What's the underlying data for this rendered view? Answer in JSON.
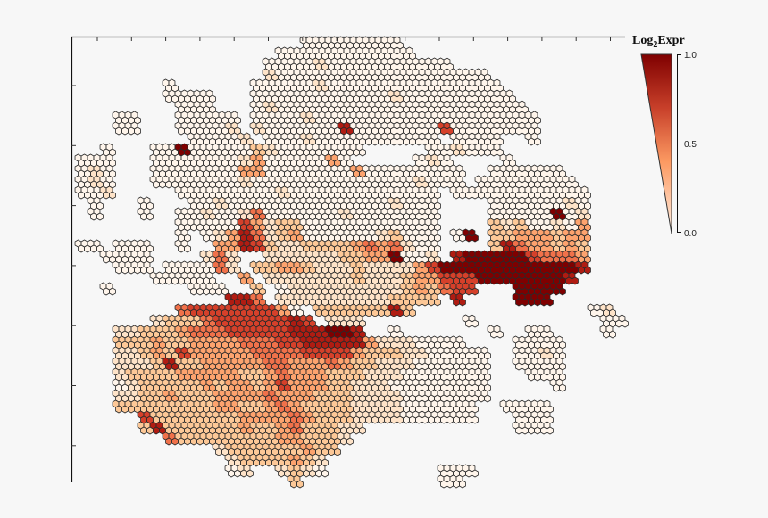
{
  "chart_data": {
    "type": "heatmap",
    "subtype": "hexbin",
    "title": "",
    "xlabel": "",
    "ylabel": "",
    "grid": false,
    "x_tick_labels": [],
    "y_tick_labels": [],
    "legend": {
      "title_main": "Log",
      "title_sub": "2",
      "title_tail": "Expr",
      "placement": "top-right",
      "range": [
        0.0,
        1.0
      ],
      "ticks": [
        "1.0",
        "0.5",
        "0.0"
      ],
      "colormap": [
        "#fff5eb",
        "#fee3c8",
        "#fdc897",
        "#fda36e",
        "#f0714a",
        "#d5402a",
        "#b01c12",
        "#7f0000"
      ]
    },
    "value_scale_note_levels": 7,
    "rows": [
      [
        [
          18,
          "00000000"
        ]
      ],
      [
        [
          16,
          "00000000000"
        ]
      ],
      [
        [
          15,
          "000010000000000"
        ]
      ],
      [
        [
          15,
          "100000000000000000"
        ]
      ],
      [
        [
          7,
          "0"
        ],
        [
          14,
          "00000100000000000000"
        ]
      ],
      [
        [
          7,
          "0000"
        ],
        [
          14,
          "000000000001000000000"
        ]
      ],
      [
        [
          8,
          "000"
        ],
        [
          14,
          "0100000000000000000000"
        ]
      ],
      [
        [
          3,
          "00"
        ],
        [
          8,
          "00000"
        ],
        [
          14,
          "00001000000000000000000"
        ]
      ],
      [
        [
          3,
          "00"
        ],
        [
          8,
          "00001"
        ],
        [
          14,
          "10000006000000050000000"
        ]
      ],
      [
        [
          9,
          "00001"
        ],
        [
          15,
          "00010000000000"
        ],
        [
          30,
          "0000"
        ],
        [
          36,
          "0"
        ]
      ],
      [
        [
          2,
          "0"
        ],
        [
          6,
          "0070000021"
        ],
        [
          16,
          "0000000"
        ],
        [
          28,
          "001000"
        ]
      ],
      [
        [
          0,
          "000"
        ],
        [
          6,
          "000000013"
        ],
        [
          15,
          "0000030"
        ],
        [
          27,
          "010"
        ],
        [
          34,
          "0"
        ]
      ],
      [
        [
          0,
          "010"
        ],
        [
          6,
          "000000033"
        ],
        [
          15,
          "00000003000"
        ],
        [
          26,
          "00000"
        ],
        [
          33,
          "000000"
        ]
      ],
      [
        [
          0,
          "010"
        ],
        [
          6,
          "000000010"
        ],
        [
          15,
          "0000000000001000"
        ],
        [
          32,
          "00000000"
        ]
      ],
      [
        [
          0,
          "001"
        ],
        [
          8,
          "0000000"
        ],
        [
          15,
          "01000000000000"
        ],
        [
          30,
          "000"
        ],
        [
          33,
          "00000000"
        ]
      ],
      [
        [
          1,
          "0"
        ],
        [
          5,
          "0"
        ],
        [
          9,
          "001000"
        ],
        [
          15,
          "00000000001000"
        ],
        [
          33,
          "00000010"
        ]
      ],
      [
        [
          1,
          "0"
        ],
        [
          5,
          "0"
        ],
        [
          8,
          "0010014"
        ],
        [
          15,
          "00000010000000"
        ],
        [
          33,
          "00000701"
        ]
      ],
      [
        [
          8,
          "00000531"
        ],
        [
          16,
          "2200000000000"
        ],
        [
          33,
          "21200103"
        ]
      ],
      [
        [
          8,
          "0"
        ],
        [
          10,
          "0136"
        ],
        [
          14,
          "4"
        ],
        [
          15,
          "12300000012000"
        ],
        [
          30,
          "07"
        ],
        [
          33,
          "22333233"
        ]
      ],
      [
        [
          0,
          "00"
        ],
        [
          3,
          "000"
        ],
        [
          8,
          "0"
        ],
        [
          11,
          "3365"
        ],
        [
          15,
          "21122223434100"
        ],
        [
          33,
          "26433232"
        ]
      ],
      [
        [
          2,
          "0000"
        ],
        [
          10,
          "141"
        ],
        [
          15,
          "111111223370"
        ],
        [
          27,
          "01"
        ],
        [
          30,
          "677777"
        ],
        [
          36,
          "54443"
        ]
      ],
      [
        [
          3,
          "000"
        ],
        [
          7,
          "0000"
        ],
        [
          11,
          "41"
        ],
        [
          14,
          "2"
        ],
        [
          15,
          "2332111211113"
        ],
        [
          28,
          "5"
        ],
        [
          29,
          "77777777777"
        ],
        [
          40,
          "6"
        ]
      ],
      [
        [
          6,
          "00000"
        ],
        [
          13,
          "3"
        ],
        [
          15,
          "11111112111233"
        ],
        [
          29,
          "555"
        ],
        [
          32,
          "77777776"
        ]
      ],
      [
        [
          2,
          "0"
        ],
        [
          9,
          "000"
        ],
        [
          14,
          "2"
        ],
        [
          16,
          "011111111123"
        ],
        [
          28,
          "2"
        ],
        [
          29,
          "455"
        ],
        [
          35,
          "7777"
        ]
      ],
      [
        [
          12,
          "66"
        ],
        [
          14,
          "4"
        ],
        [
          16,
          "1111111112222"
        ],
        [
          30,
          "6"
        ],
        [
          35,
          "777"
        ]
      ],
      [
        [
          8,
          "455555553"
        ],
        [
          17,
          "0"
        ],
        [
          19,
          "22222262"
        ],
        [
          41,
          "01"
        ]
      ],
      [
        [
          6,
          "1222455555565"
        ],
        [
          20,
          "111"
        ],
        [
          31,
          "0"
        ],
        [
          42,
          "00"
        ]
      ],
      [
        [
          3,
          "1122234445555566677"
        ],
        [
          22,
          "6"
        ],
        [
          25,
          "0"
        ],
        [
          33,
          "0"
        ],
        [
          36,
          "00"
        ],
        [
          42,
          "0"
        ]
      ],
      [
        [
          3,
          "222322333344455666663"
        ],
        [
          24,
          "111"
        ],
        [
          27,
          "0000"
        ],
        [
          35,
          "0000"
        ]
      ],
      [
        [
          3,
          "112325333334444555532221100000"
        ],
        [
          35,
          "0010"
        ]
      ],
      [
        [
          3,
          "111262233333443334322111000000"
        ],
        [
          35,
          "0000"
        ]
      ],
      [
        [
          3,
          "122223333322343332221110000000"
        ],
        [
          36,
          "000"
        ]
      ],
      [
        [
          3,
          "012222232332353332211100000000"
        ],
        [
          38,
          "0"
        ]
      ],
      [
        [
          3,
          "112232223333433322211110000000"
        ]
      ],
      [
        [
          3,
          "22222222332234322221111000000"
        ],
        [
          34,
          "0000"
        ]
      ],
      [
        [
          5,
          "522222223333432221111000000"
        ],
        [
          35,
          "000"
        ]
      ],
      [
        [
          5,
          "262222223223422211"
        ],
        [
          35,
          "000"
        ]
      ],
      [
        [
          7,
          "422222222332221"
        ]
      ],
      [
        [
          11,
          "1222222322"
        ]
      ],
      [
        [
          12,
          "12222321"
        ]
      ],
      [
        [
          12,
          "01"
        ],
        [
          16,
          "1210"
        ],
        [
          29,
          "000"
        ]
      ],
      [
        [
          17,
          "2"
        ],
        [
          29,
          "00"
        ]
      ]
    ]
  }
}
